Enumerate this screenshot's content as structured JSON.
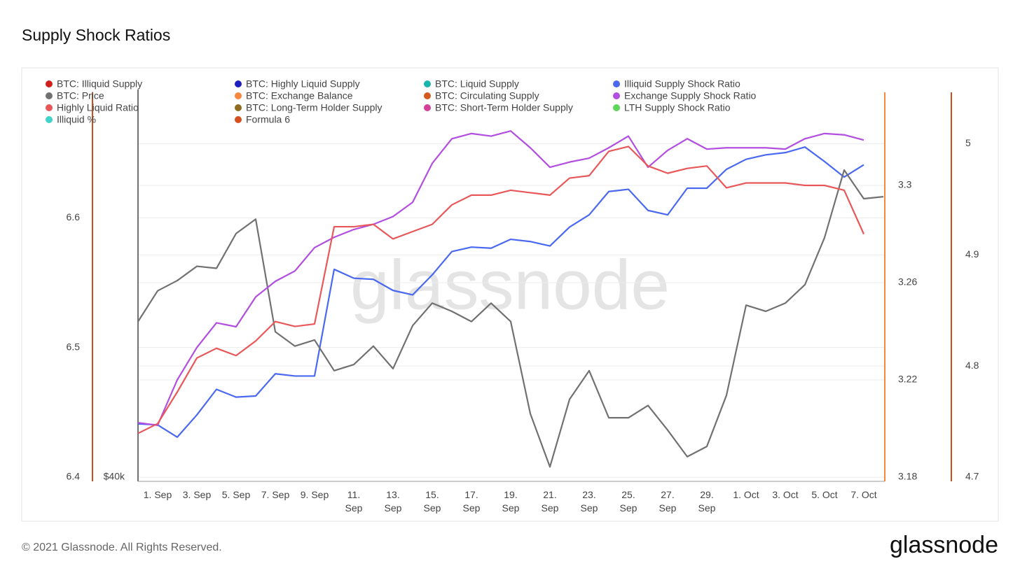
{
  "chart_data": {
    "type": "line",
    "title": "Supply Shock Ratios",
    "watermark": "glassnode",
    "footer": "© 2021 Glassnode. All Rights Reserved.",
    "brand": "glassnode",
    "categories": [
      null,
      "1. Sep",
      null,
      "3. Sep",
      null,
      "5. Sep",
      null,
      "7. Sep",
      null,
      "9. Sep",
      null,
      "11. Sep",
      null,
      "13. Sep",
      null,
      "15. Sep",
      null,
      "17. Sep",
      null,
      "19. Sep",
      null,
      "21. Sep",
      null,
      "23. Sep",
      null,
      "25. Sep",
      null,
      "27. Sep",
      null,
      "29. Sep",
      null,
      "1. Oct",
      null,
      "3. Oct",
      null,
      "5. Oct",
      null,
      "7. Oct",
      null
    ],
    "ylim": [
      6.4,
      6.7
    ],
    "yticks": [
      6.4,
      6.5,
      6.6
    ],
    "y_color": "#c9501e",
    "y2lim": [
      3.18,
      3.34
    ],
    "y2ticks": [
      3.18,
      3.22,
      3.26,
      3.3
    ],
    "y2_color": "#f5883d",
    "y3lim": [
      4.7,
      5.05
    ],
    "y3ticks": [
      4.7,
      4.8,
      4.9,
      5
    ],
    "y3_color": "#c9501e",
    "y4lim": [
      40000,
      59000
    ],
    "y4ticks": [
      {
        "value": 40000,
        "label": "$40k"
      }
    ],
    "y4_color": "#717171",
    "grid": true,
    "series": [
      {
        "name": "BTC: Illiquid Supply",
        "color": "#d0201a",
        "visible": false
      },
      {
        "name": "BTC: Highly Liquid Supply",
        "color": "#1d1fc0",
        "visible": false
      },
      {
        "name": "BTC: Liquid Supply",
        "color": "#17b5ad",
        "visible": false
      },
      {
        "name": "Illiquid Supply Shock Ratio",
        "color": "#4a68f0",
        "visible": true,
        "axis": "y3",
        "values": [
          4.748,
          4.747,
          4.736,
          4.756,
          4.779,
          4.772,
          4.773,
          4.793,
          4.791,
          4.791,
          4.887,
          4.879,
          4.878,
          4.868,
          4.864,
          4.882,
          4.903,
          4.907,
          4.906,
          4.914,
          4.912,
          4.908,
          4.925,
          4.936,
          4.957,
          4.959,
          4.94,
          4.936,
          4.96,
          4.96,
          4.977,
          4.986,
          4.99,
          4.992,
          4.997,
          4.984,
          4.97,
          4.981,
          null
        ]
      },
      {
        "name": "BTC: Price",
        "color": "#717171",
        "visible": true,
        "axis": "y4",
        "values": [
          47600,
          49100,
          49600,
          50300,
          50200,
          51900,
          52600,
          47100,
          46400,
          46700,
          45200,
          45500,
          46400,
          45300,
          47400,
          48500,
          48100,
          47600,
          48500,
          47600,
          43100,
          40500,
          43800,
          45200,
          42900,
          42900,
          43500,
          42300,
          41000,
          41500,
          44000,
          48400,
          48100,
          48500,
          49400,
          51700,
          55000,
          53600,
          53700
        ]
      },
      {
        "name": "BTC: Exchange Balance",
        "color": "#f5883d",
        "visible": false
      },
      {
        "name": "BTC: Circulating Supply",
        "color": "#d45a1f",
        "visible": false
      },
      {
        "name": "Exchange Supply Shock Ratio",
        "color": "#b24ee0",
        "visible": true,
        "axis": "y",
        "values": [
          6.442,
          6.44,
          6.475,
          6.5,
          6.519,
          6.516,
          6.539,
          6.551,
          6.559,
          6.577,
          6.585,
          6.591,
          6.595,
          6.601,
          6.612,
          6.642,
          6.661,
          6.665,
          6.663,
          6.667,
          6.654,
          6.639,
          6.643,
          6.646,
          6.654,
          6.663,
          6.639,
          6.652,
          6.661,
          6.653,
          6.654,
          6.654,
          6.654,
          6.653,
          6.661,
          6.665,
          6.664,
          6.66,
          null
        ]
      },
      {
        "name": "Highly Liquid Ratio",
        "color": "#e8585a",
        "visible": true,
        "axis": "y2",
        "values": [
          3.198,
          3.202,
          3.215,
          3.229,
          3.233,
          3.23,
          3.236,
          3.244,
          3.242,
          3.243,
          3.283,
          3.283,
          3.284,
          3.278,
          3.281,
          3.284,
          3.292,
          3.296,
          3.296,
          3.298,
          3.297,
          3.296,
          3.303,
          3.304,
          3.314,
          3.316,
          3.308,
          3.305,
          3.307,
          3.308,
          3.299,
          3.301,
          3.301,
          3.301,
          3.3,
          3.3,
          3.298,
          3.28,
          null
        ]
      },
      {
        "name": "BTC: Long-Term Holder Supply",
        "color": "#8d6b1f",
        "visible": false
      },
      {
        "name": "BTC: Short-Term Holder Supply",
        "color": "#d43f9b",
        "visible": false
      },
      {
        "name": "LTH Supply Shock Ratio",
        "color": "#5fd65a",
        "visible": false
      },
      {
        "name": "Illiquid %",
        "color": "#3fd3c9",
        "visible": false
      },
      {
        "name": "Formula 6",
        "color": "#d6501f",
        "visible": false
      }
    ]
  }
}
